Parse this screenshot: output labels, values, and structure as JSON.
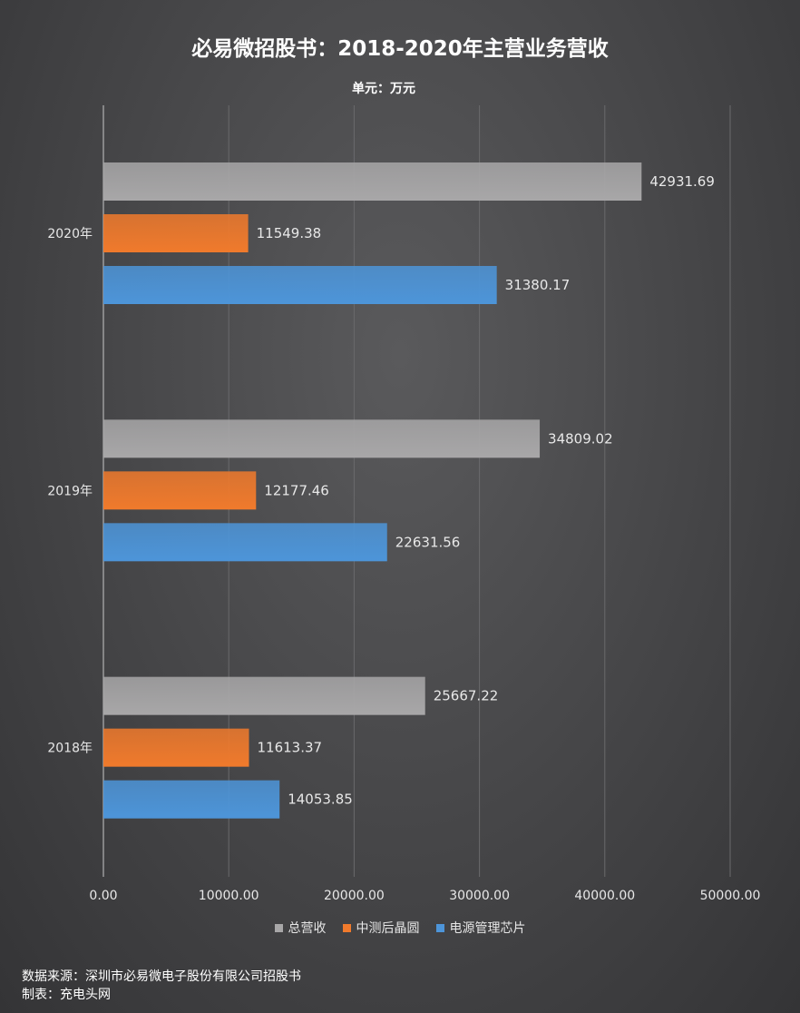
{
  "chart_data": {
    "type": "bar",
    "orientation": "horizontal",
    "title": "必易微招股书：2018-2020年主营业务营收",
    "subtitle": "单元：万元",
    "categories": [
      "2020年",
      "2019年",
      "2018年"
    ],
    "series": [
      {
        "name": "总营收",
        "color": "#a8a7a8",
        "values": [
          42931.69,
          34809.02,
          25667.22
        ],
        "labels": [
          "42931.69",
          "34809.02",
          "25667.22"
        ]
      },
      {
        "name": "中测后晶圆",
        "color": "#f07a2c",
        "values": [
          11549.38,
          12177.46,
          11613.37
        ],
        "labels": [
          "11549.38",
          "12177.46",
          "11613.37"
        ]
      },
      {
        "name": "电源管理芯片",
        "color": "#4d95d9",
        "values": [
          31380.17,
          22631.56,
          14053.85
        ],
        "labels": [
          "31380.17",
          "22631.56",
          "14053.85"
        ]
      }
    ],
    "xlim": [
      0,
      50000
    ],
    "xticks": [
      "0.00",
      "10000.00",
      "20000.00",
      "30000.00",
      "40000.00",
      "50000.00"
    ],
    "grid": true,
    "legend_position": "bottom"
  },
  "footer": {
    "source": "数据来源：深圳市必易微电子股份有限公司招股书",
    "maker": "制表：充电头网"
  }
}
